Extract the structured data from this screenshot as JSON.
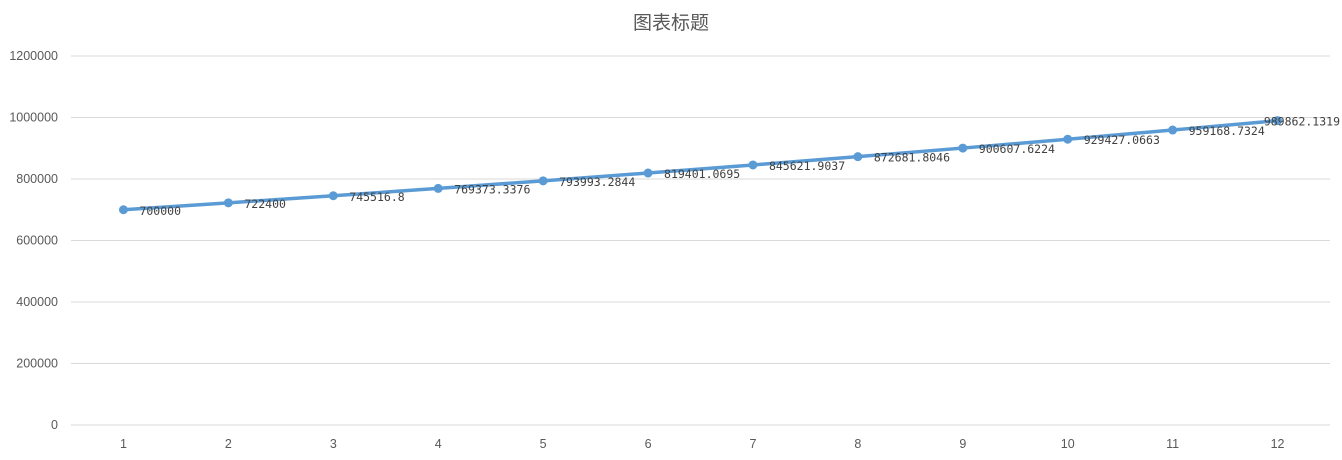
{
  "chart_data": {
    "type": "line",
    "title": "图表标题",
    "xlabel": "",
    "ylabel": "",
    "categories": [
      "1",
      "2",
      "3",
      "4",
      "5",
      "6",
      "7",
      "8",
      "9",
      "10",
      "11",
      "12"
    ],
    "series": [
      {
        "values": [
          700000,
          722400,
          745516.8,
          769373.3376,
          793993.2844,
          819401.0695,
          845621.9037,
          872681.8046,
          900607.6224,
          929427.0663,
          959168.7324,
          989862.1319
        ],
        "labels": [
          "700000",
          "722400",
          "745516.8",
          "769373.3376",
          "793993.2844",
          "819401.0695",
          "845621.9037",
          "872681.8046",
          "900607.6224",
          "929427.0663",
          "959168.7324",
          "989862.1319"
        ],
        "color": "#5b9bd5"
      }
    ],
    "ylim": [
      0,
      1200000
    ],
    "yticks": [
      "0",
      "200000",
      "400000",
      "600000",
      "800000",
      "1000000",
      "1200000"
    ],
    "grid": true,
    "legend": "none",
    "markers": true,
    "data_labels": true
  }
}
